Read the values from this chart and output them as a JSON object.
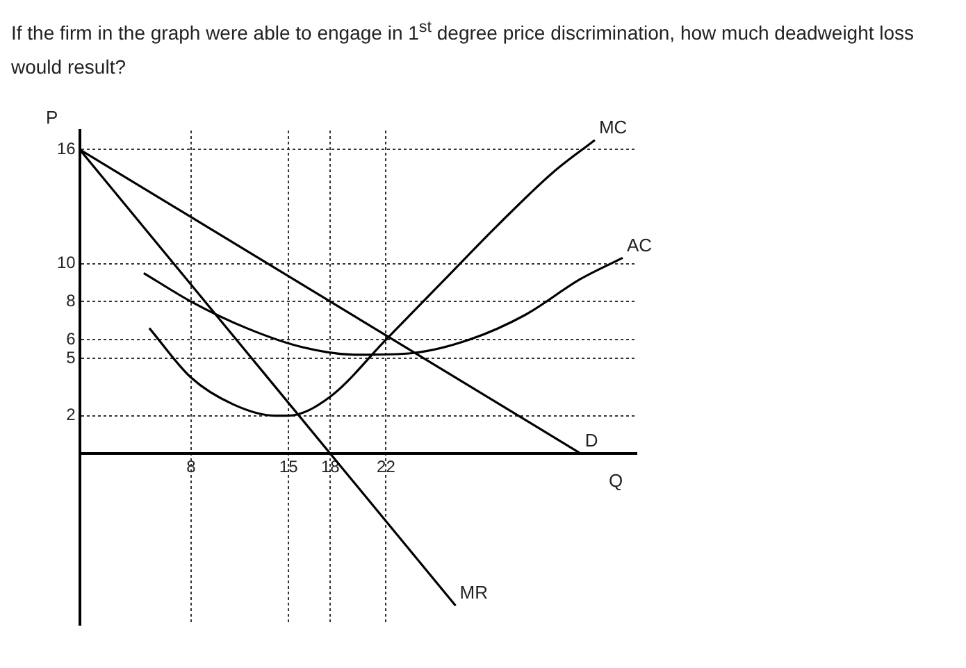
{
  "chart_data": {
    "type": "line",
    "title": "If the firm in the graph were able to engage in 1$^{st}$ degree price discrimination, how much deadweight loss would result?",
    "xlabel": "Q",
    "ylabel": "P",
    "xlim": [
      0,
      40
    ],
    "xticks": [
      8,
      15,
      18,
      22
    ],
    "ylim": [
      -9,
      17
    ],
    "yticks": [
      2,
      5,
      6,
      8,
      10,
      16
    ],
    "grid": true,
    "legend": false,
    "marker": "none",
    "line_style": "solid",
    "series": [
      {
        "name": "D",
        "color": "#000000",
        "x": [
          0,
          36
        ],
        "values": [
          16,
          0
        ]
      },
      {
        "name": "MR",
        "color": "#000000",
        "x": [
          0,
          27
        ],
        "values": [
          16,
          -8
        ]
      },
      {
        "name": "MC",
        "color": "#000000",
        "x": [
          5,
          8,
          11,
          14,
          15,
          18,
          22,
          26,
          30,
          34,
          37
        ],
        "values": [
          6.6,
          4,
          2.6,
          2,
          2,
          3,
          6,
          9,
          12,
          14.8,
          16.5
        ]
      },
      {
        "name": "AC",
        "color": "#000000",
        "x": [
          4.6,
          8,
          12,
          16,
          20,
          24,
          28,
          32,
          36,
          39
        ],
        "values": [
          9.5,
          8,
          6.6,
          5.6,
          5.2,
          5.3,
          6,
          7.3,
          9.2,
          10.3
        ]
      }
    ]
  }
}
